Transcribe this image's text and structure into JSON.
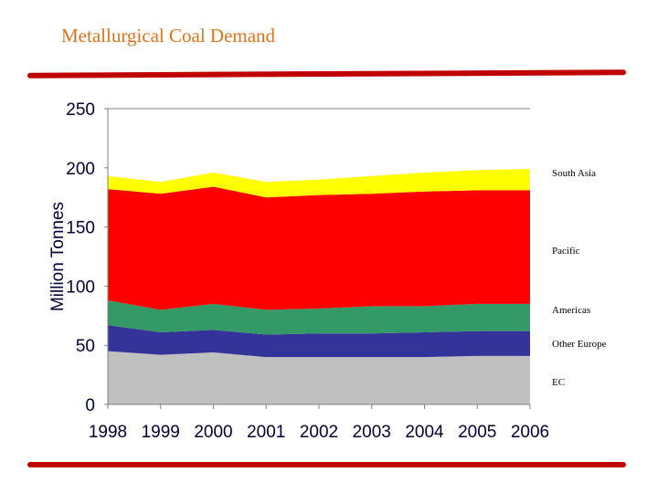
{
  "title": "Metallurgical Coal Demand",
  "chart_data": {
    "type": "area",
    "stacked": true,
    "title": "",
    "xlabel": "",
    "ylabel": "Million Tonnes",
    "ylim": [
      0,
      250
    ],
    "yticks": [
      0,
      50,
      100,
      150,
      200,
      250
    ],
    "categories": [
      "1998",
      "1999",
      "2000",
      "2001",
      "2002",
      "2003",
      "2004",
      "2005",
      "2006"
    ],
    "series": [
      {
        "name": "EC",
        "color": "#c0c0c0",
        "values": [
          45,
          42,
          44,
          40,
          40,
          40,
          40,
          41,
          41
        ]
      },
      {
        "name": "Other Europe",
        "color": "#333399",
        "values": [
          22,
          19,
          19,
          19,
          20,
          20,
          21,
          21,
          21
        ]
      },
      {
        "name": "Americas",
        "color": "#339966",
        "values": [
          21,
          19,
          22,
          21,
          21,
          23,
          22,
          23,
          23
        ]
      },
      {
        "name": "Pacific",
        "color": "#ff0000",
        "values": [
          94,
          98,
          99,
          95,
          96,
          95,
          97,
          96,
          96
        ]
      },
      {
        "name": "South Asia",
        "color": "#ffff00",
        "values": [
          11,
          10,
          12,
          13,
          13,
          15,
          16,
          17,
          18
        ]
      }
    ],
    "legend": "right, inline labels",
    "grid": false
  }
}
